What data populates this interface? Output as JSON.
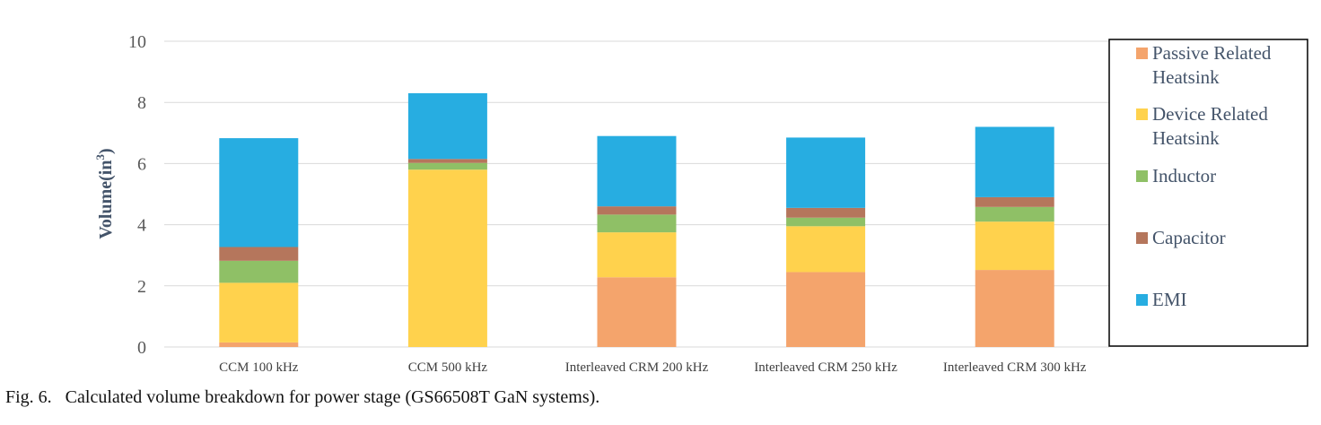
{
  "chart_data": {
    "type": "bar",
    "stacked": true,
    "categories": [
      "CCM 100 kHz",
      "CCM 500 kHz",
      "Interleaved CRM 200 kHz",
      "Interleaved CRM 250 kHz",
      "Interleaved CRM 300 kHz"
    ],
    "series": [
      {
        "name": "Passive Related Heatsink",
        "color": "#f4a46c",
        "values": [
          0.15,
          0,
          2.28,
          2.45,
          2.52
        ]
      },
      {
        "name": "Device Related Heatsink",
        "color": "#ffd24d",
        "values": [
          1.95,
          5.8,
          1.47,
          1.5,
          1.58
        ]
      },
      {
        "name": "Inductor",
        "color": "#8fc066",
        "values": [
          0.72,
          0.22,
          0.58,
          0.28,
          0.48
        ]
      },
      {
        "name": "Capacitor",
        "color": "#b5765c",
        "values": [
          0.45,
          0.13,
          0.27,
          0.32,
          0.32
        ]
      },
      {
        "name": "EMI",
        "color": "#27ade1",
        "values": [
          3.56,
          2.15,
          2.3,
          2.3,
          2.3
        ]
      }
    ],
    "ylabel_text": "Volume(in",
    "ylabel_sup": "3",
    "ylabel_close": ")",
    "ylim": [
      0,
      10
    ],
    "yticks": [
      0,
      2,
      4,
      6,
      8,
      10
    ],
    "grid": true,
    "legend_position": "right"
  },
  "caption": "Fig. 6.   Calculated volume breakdown for power stage (GS66508T GaN systems)."
}
